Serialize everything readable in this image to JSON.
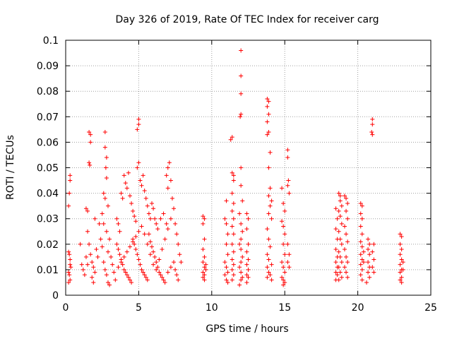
{
  "chart_data": {
    "type": "scatter",
    "title": "Day 326 of 2019, Rate Of TEC Index for receiver carg",
    "xlabel": "GPS time / hours",
    "ylabel": "ROTI / TECUs",
    "xlim": [
      0,
      25
    ],
    "ylim": [
      0,
      0.1
    ],
    "x_ticks": [
      "0",
      "5",
      "10",
      "15",
      "20",
      "25"
    ],
    "y_ticks": [
      "0",
      "0.01",
      "0.02",
      "0.03",
      "0.04",
      "0.05",
      "0.06",
      "0.07",
      "0.08",
      "0.09",
      "0.1"
    ],
    "grid": true,
    "marker": "+",
    "marker_color": "#ff0000",
    "points": [
      [
        0.2,
        0.035
      ],
      [
        0.25,
        0.04
      ],
      [
        0.3,
        0.045
      ],
      [
        0.3,
        0.047
      ],
      [
        0.2,
        0.017
      ],
      [
        0.25,
        0.016
      ],
      [
        0.3,
        0.012
      ],
      [
        0.2,
        0.009
      ],
      [
        0.25,
        0.008
      ],
      [
        0.3,
        0.006
      ],
      [
        0.2,
        0.005
      ],
      [
        0.35,
        0.011
      ],
      [
        0.3,
        0.014
      ],
      [
        1.0,
        0.02
      ],
      [
        1.1,
        0.012
      ],
      [
        1.2,
        0.01
      ],
      [
        1.3,
        0.008
      ],
      [
        1.4,
        0.034
      ],
      [
        1.5,
        0.033
      ],
      [
        1.6,
        0.064
      ],
      [
        1.7,
        0.063
      ],
      [
        1.7,
        0.06
      ],
      [
        1.6,
        0.052
      ],
      [
        1.65,
        0.051
      ],
      [
        1.5,
        0.025
      ],
      [
        1.6,
        0.02
      ],
      [
        1.7,
        0.016
      ],
      [
        1.8,
        0.013
      ],
      [
        1.9,
        0.011
      ],
      [
        2.0,
        0.009
      ],
      [
        1.8,
        0.007
      ],
      [
        1.9,
        0.005
      ],
      [
        1.4,
        0.015
      ],
      [
        1.5,
        0.012
      ],
      [
        2.1,
        0.018
      ],
      [
        2.2,
        0.015
      ],
      [
        2.0,
        0.03
      ],
      [
        2.3,
        0.028
      ],
      [
        2.4,
        0.022
      ],
      [
        2.7,
        0.064
      ],
      [
        2.7,
        0.058
      ],
      [
        2.8,
        0.054
      ],
      [
        2.75,
        0.05
      ],
      [
        2.8,
        0.046
      ],
      [
        2.6,
        0.04
      ],
      [
        2.7,
        0.038
      ],
      [
        2.9,
        0.035
      ],
      [
        2.5,
        0.032
      ],
      [
        2.6,
        0.028
      ],
      [
        2.8,
        0.025
      ],
      [
        3.0,
        0.022
      ],
      [
        2.5,
        0.019
      ],
      [
        2.9,
        0.017
      ],
      [
        3.1,
        0.015
      ],
      [
        2.6,
        0.013
      ],
      [
        3.2,
        0.012
      ],
      [
        2.7,
        0.01
      ],
      [
        3.3,
        0.009
      ],
      [
        2.8,
        0.008
      ],
      [
        3.4,
        0.006
      ],
      [
        2.9,
        0.005
      ],
      [
        3.0,
        0.004
      ],
      [
        3.5,
        0.03
      ],
      [
        3.6,
        0.028
      ],
      [
        3.7,
        0.025
      ],
      [
        3.8,
        0.04
      ],
      [
        3.9,
        0.038
      ],
      [
        4.0,
        0.047
      ],
      [
        4.1,
        0.044
      ],
      [
        4.2,
        0.042
      ],
      [
        4.3,
        0.048
      ],
      [
        4.4,
        0.039
      ],
      [
        4.5,
        0.036
      ],
      [
        4.6,
        0.033
      ],
      [
        4.7,
        0.031
      ],
      [
        4.8,
        0.029
      ],
      [
        4.9,
        0.05
      ],
      [
        5.0,
        0.052
      ],
      [
        5.0,
        0.069
      ],
      [
        5.0,
        0.067
      ],
      [
        4.9,
        0.065
      ],
      [
        5.1,
        0.045
      ],
      [
        5.2,
        0.043
      ],
      [
        5.3,
        0.047
      ],
      [
        5.4,
        0.041
      ],
      [
        5.5,
        0.038
      ],
      [
        5.6,
        0.035
      ],
      [
        5.7,
        0.032
      ],
      [
        5.8,
        0.03
      ],
      [
        5.9,
        0.036
      ],
      [
        6.0,
        0.034
      ],
      [
        6.1,
        0.03
      ],
      [
        6.2,
        0.028
      ],
      [
        6.3,
        0.026
      ],
      [
        3.5,
        0.02
      ],
      [
        3.6,
        0.018
      ],
      [
        3.7,
        0.016
      ],
      [
        3.8,
        0.014
      ],
      [
        3.9,
        0.012
      ],
      [
        4.0,
        0.01
      ],
      [
        4.1,
        0.009
      ],
      [
        4.2,
        0.008
      ],
      [
        4.3,
        0.007
      ],
      [
        4.4,
        0.006
      ],
      [
        4.5,
        0.005
      ],
      [
        4.6,
        0.022
      ],
      [
        4.7,
        0.02
      ],
      [
        4.8,
        0.018
      ],
      [
        4.9,
        0.016
      ],
      [
        5.0,
        0.014
      ],
      [
        5.1,
        0.012
      ],
      [
        5.2,
        0.01
      ],
      [
        5.3,
        0.009
      ],
      [
        5.4,
        0.008
      ],
      [
        5.5,
        0.007
      ],
      [
        5.6,
        0.006
      ],
      [
        5.7,
        0.024
      ],
      [
        5.8,
        0.021
      ],
      [
        5.9,
        0.019
      ],
      [
        6.0,
        0.017
      ],
      [
        6.1,
        0.015
      ],
      [
        6.2,
        0.013
      ],
      [
        6.3,
        0.011
      ],
      [
        6.4,
        0.009
      ],
      [
        6.5,
        0.008
      ],
      [
        6.6,
        0.007
      ],
      [
        6.7,
        0.006
      ],
      [
        6.8,
        0.005
      ],
      [
        3.6,
        0.011
      ],
      [
        3.8,
        0.013
      ],
      [
        4.0,
        0.015
      ],
      [
        4.2,
        0.017
      ],
      [
        4.4,
        0.019
      ],
      [
        4.6,
        0.021
      ],
      [
        4.8,
        0.023
      ],
      [
        5.0,
        0.025
      ],
      [
        5.2,
        0.027
      ],
      [
        5.4,
        0.024
      ],
      [
        5.6,
        0.02
      ],
      [
        5.8,
        0.016
      ],
      [
        6.0,
        0.012
      ],
      [
        6.2,
        0.01
      ],
      [
        6.4,
        0.014
      ],
      [
        6.6,
        0.018
      ],
      [
        6.8,
        0.022
      ],
      [
        7.0,
        0.026
      ],
      [
        7.2,
        0.03
      ],
      [
        7.1,
        0.052
      ],
      [
        7.0,
        0.05
      ],
      [
        6.9,
        0.047
      ],
      [
        7.2,
        0.045
      ],
      [
        7.0,
        0.042
      ],
      [
        7.3,
        0.038
      ],
      [
        7.4,
        0.034
      ],
      [
        7.5,
        0.028
      ],
      [
        7.6,
        0.024
      ],
      [
        7.7,
        0.02
      ],
      [
        7.8,
        0.016
      ],
      [
        7.9,
        0.013
      ],
      [
        7.5,
        0.01
      ],
      [
        7.6,
        0.008
      ],
      [
        7.7,
        0.006
      ],
      [
        7.0,
        0.009
      ],
      [
        7.2,
        0.011
      ],
      [
        7.4,
        0.013
      ],
      [
        6.5,
        0.03
      ],
      [
        6.7,
        0.032
      ],
      [
        6.9,
        0.028
      ],
      [
        9.4,
        0.031
      ],
      [
        9.5,
        0.03
      ],
      [
        9.4,
        0.028
      ],
      [
        9.5,
        0.022
      ],
      [
        9.4,
        0.018
      ],
      [
        9.5,
        0.015
      ],
      [
        9.4,
        0.013
      ],
      [
        9.5,
        0.011
      ],
      [
        9.4,
        0.009
      ],
      [
        9.5,
        0.008
      ],
      [
        9.4,
        0.007
      ],
      [
        9.5,
        0.006
      ],
      [
        9.6,
        0.01
      ],
      [
        9.6,
        0.012
      ],
      [
        10.9,
        0.03
      ],
      [
        11.0,
        0.037
      ],
      [
        11.0,
        0.028
      ],
      [
        11.1,
        0.024
      ],
      [
        11.0,
        0.02
      ],
      [
        11.1,
        0.016
      ],
      [
        10.9,
        0.013
      ],
      [
        11.0,
        0.011
      ],
      [
        11.1,
        0.009
      ],
      [
        10.9,
        0.008
      ],
      [
        11.0,
        0.006
      ],
      [
        11.1,
        0.005
      ],
      [
        11.3,
        0.061
      ],
      [
        11.4,
        0.062
      ],
      [
        11.4,
        0.048
      ],
      [
        11.5,
        0.047
      ],
      [
        11.5,
        0.045
      ],
      [
        11.4,
        0.04
      ],
      [
        11.5,
        0.036
      ],
      [
        11.4,
        0.033
      ],
      [
        11.5,
        0.03
      ],
      [
        11.4,
        0.027
      ],
      [
        11.5,
        0.024
      ],
      [
        11.4,
        0.02
      ],
      [
        11.5,
        0.017
      ],
      [
        11.4,
        0.014
      ],
      [
        11.5,
        0.012
      ],
      [
        11.4,
        0.01
      ],
      [
        11.5,
        0.008
      ],
      [
        11.4,
        0.006
      ],
      [
        12.0,
        0.096
      ],
      [
        12.0,
        0.086
      ],
      [
        12.0,
        0.079
      ],
      [
        12.0,
        0.071
      ],
      [
        11.95,
        0.07
      ],
      [
        12.0,
        0.05
      ],
      [
        12.0,
        0.043
      ],
      [
        12.1,
        0.037
      ],
      [
        11.9,
        0.032
      ],
      [
        12.0,
        0.028
      ],
      [
        12.1,
        0.025
      ],
      [
        12.0,
        0.022
      ],
      [
        11.9,
        0.02
      ],
      [
        12.0,
        0.018
      ],
      [
        12.1,
        0.015
      ],
      [
        12.0,
        0.013
      ],
      [
        11.9,
        0.011
      ],
      [
        12.0,
        0.009
      ],
      [
        12.1,
        0.007
      ],
      [
        12.0,
        0.006
      ],
      [
        11.9,
        0.004
      ],
      [
        12.4,
        0.032
      ],
      [
        12.5,
        0.03
      ],
      [
        12.4,
        0.026
      ],
      [
        12.5,
        0.02
      ],
      [
        12.4,
        0.017
      ],
      [
        12.5,
        0.014
      ],
      [
        12.4,
        0.012
      ],
      [
        12.5,
        0.01
      ],
      [
        12.4,
        0.008
      ],
      [
        12.5,
        0.007
      ],
      [
        12.4,
        0.005
      ],
      [
        13.8,
        0.077
      ],
      [
        13.9,
        0.076
      ],
      [
        13.8,
        0.074
      ],
      [
        13.9,
        0.071
      ],
      [
        13.8,
        0.068
      ],
      [
        13.9,
        0.064
      ],
      [
        13.8,
        0.063
      ],
      [
        14.0,
        0.056
      ],
      [
        13.9,
        0.05
      ],
      [
        14.0,
        0.042
      ],
      [
        13.9,
        0.039
      ],
      [
        14.1,
        0.037
      ],
      [
        14.0,
        0.035
      ],
      [
        13.9,
        0.032
      ],
      [
        14.1,
        0.03
      ],
      [
        13.8,
        0.026
      ],
      [
        13.9,
        0.022
      ],
      [
        14.0,
        0.019
      ],
      [
        13.8,
        0.016
      ],
      [
        13.9,
        0.014
      ],
      [
        14.1,
        0.012
      ],
      [
        13.8,
        0.011
      ],
      [
        13.9,
        0.009
      ],
      [
        14.0,
        0.008
      ],
      [
        13.8,
        0.007
      ],
      [
        14.1,
        0.006
      ],
      [
        14.8,
        0.042
      ],
      [
        14.9,
        0.036
      ],
      [
        15.0,
        0.033
      ],
      [
        14.8,
        0.029
      ],
      [
        14.9,
        0.027
      ],
      [
        15.0,
        0.024
      ],
      [
        14.9,
        0.02
      ],
      [
        15.0,
        0.016
      ],
      [
        14.8,
        0.013
      ],
      [
        14.9,
        0.011
      ],
      [
        15.0,
        0.009
      ],
      [
        14.8,
        0.007
      ],
      [
        14.9,
        0.006
      ],
      [
        15.0,
        0.005
      ],
      [
        14.9,
        0.004
      ],
      [
        15.2,
        0.057
      ],
      [
        15.2,
        0.054
      ],
      [
        15.25,
        0.045
      ],
      [
        15.2,
        0.043
      ],
      [
        15.3,
        0.04
      ],
      [
        15.2,
        0.02
      ],
      [
        15.3,
        0.016
      ],
      [
        15.2,
        0.013
      ],
      [
        15.3,
        0.011
      ],
      [
        18.5,
        0.034
      ],
      [
        18.6,
        0.03
      ],
      [
        18.5,
        0.026
      ],
      [
        18.6,
        0.022
      ],
      [
        18.5,
        0.018
      ],
      [
        18.6,
        0.015
      ],
      [
        18.5,
        0.013
      ],
      [
        18.6,
        0.011
      ],
      [
        18.5,
        0.009
      ],
      [
        18.6,
        0.008
      ],
      [
        18.5,
        0.006
      ],
      [
        18.7,
        0.04
      ],
      [
        18.8,
        0.039
      ],
      [
        18.8,
        0.037
      ],
      [
        18.9,
        0.035
      ],
      [
        18.7,
        0.033
      ],
      [
        18.8,
        0.031
      ],
      [
        18.9,
        0.028
      ],
      [
        18.7,
        0.025
      ],
      [
        18.8,
        0.022
      ],
      [
        18.9,
        0.02
      ],
      [
        18.7,
        0.017
      ],
      [
        18.8,
        0.015
      ],
      [
        18.9,
        0.013
      ],
      [
        18.7,
        0.011
      ],
      [
        18.8,
        0.009
      ],
      [
        18.9,
        0.007
      ],
      [
        18.7,
        0.006
      ],
      [
        19.1,
        0.039
      ],
      [
        19.2,
        0.038
      ],
      [
        19.3,
        0.036
      ],
      [
        19.2,
        0.033
      ],
      [
        19.3,
        0.03
      ],
      [
        19.1,
        0.027
      ],
      [
        19.2,
        0.024
      ],
      [
        19.3,
        0.021
      ],
      [
        19.1,
        0.018
      ],
      [
        19.2,
        0.015
      ],
      [
        19.3,
        0.013
      ],
      [
        19.1,
        0.011
      ],
      [
        19.2,
        0.009
      ],
      [
        19.3,
        0.007
      ],
      [
        20.2,
        0.036
      ],
      [
        20.3,
        0.035
      ],
      [
        20.2,
        0.032
      ],
      [
        20.3,
        0.03
      ],
      [
        20.2,
        0.027
      ],
      [
        20.3,
        0.024
      ],
      [
        20.2,
        0.021
      ],
      [
        20.3,
        0.019
      ],
      [
        20.2,
        0.016
      ],
      [
        20.3,
        0.014
      ],
      [
        20.2,
        0.012
      ],
      [
        20.3,
        0.01
      ],
      [
        20.2,
        0.008
      ],
      [
        20.3,
        0.006
      ],
      [
        20.4,
        0.017
      ],
      [
        20.4,
        0.013
      ],
      [
        20.7,
        0.022
      ],
      [
        20.8,
        0.02
      ],
      [
        20.7,
        0.018
      ],
      [
        20.8,
        0.016
      ],
      [
        20.7,
        0.013
      ],
      [
        20.8,
        0.011
      ],
      [
        20.7,
        0.009
      ],
      [
        20.8,
        0.007
      ],
      [
        20.6,
        0.005
      ],
      [
        21.0,
        0.069
      ],
      [
        21.0,
        0.067
      ],
      [
        20.95,
        0.064
      ],
      [
        21.0,
        0.063
      ],
      [
        21.1,
        0.02
      ],
      [
        21.0,
        0.017
      ],
      [
        21.1,
        0.014
      ],
      [
        21.0,
        0.011
      ],
      [
        21.1,
        0.009
      ],
      [
        22.9,
        0.024
      ],
      [
        23.0,
        0.023
      ],
      [
        22.9,
        0.02
      ],
      [
        23.0,
        0.018
      ],
      [
        22.9,
        0.016
      ],
      [
        23.0,
        0.014
      ],
      [
        22.9,
        0.012
      ],
      [
        23.0,
        0.01
      ],
      [
        22.9,
        0.009
      ],
      [
        23.0,
        0.007
      ],
      [
        22.9,
        0.006
      ],
      [
        23.0,
        0.005
      ],
      [
        23.1,
        0.013
      ],
      [
        23.1,
        0.01
      ]
    ]
  }
}
